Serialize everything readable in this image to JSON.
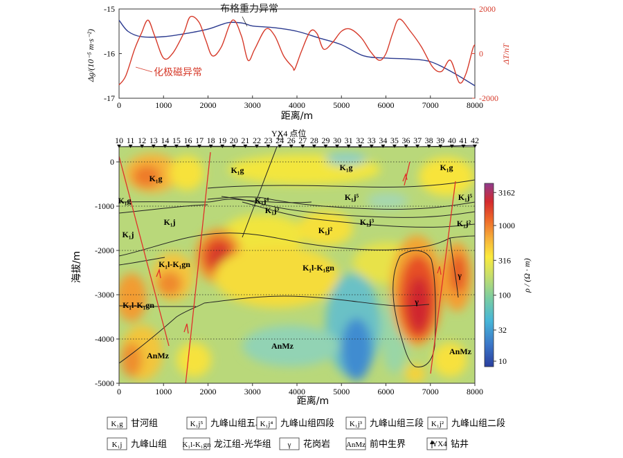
{
  "top_chart": {
    "left_axis_label": "Δg/(10⁻⁵ m·s⁻²)",
    "right_axis_label": "ΔT/nT",
    "xlabel": "距离/m",
    "left_ticks": [
      "-15",
      "-16",
      "-17"
    ],
    "right_ticks": [
      "2000",
      "0",
      "-2000"
    ],
    "x_ticks": [
      "0",
      "1000",
      "2000",
      "3000",
      "4000",
      "5000",
      "6000",
      "7000",
      "8000"
    ],
    "gravity_label": "布格重力异常",
    "magnetic_label": "化极磁异常",
    "gravity_color": "#2b3a8f",
    "magnetic_color": "#d63a2a"
  },
  "chart_data": {
    "type": "line",
    "x_unit": "m",
    "xlim": [
      0,
      8000
    ],
    "series": [
      {
        "name": "布格重力异常",
        "axis": "left",
        "ylim": [
          -17,
          -15
        ],
        "points": [
          [
            0,
            -15.25
          ],
          [
            200,
            -15.5
          ],
          [
            500,
            -15.62
          ],
          [
            1000,
            -15.62
          ],
          [
            1500,
            -15.55
          ],
          [
            2000,
            -15.45
          ],
          [
            2300,
            -15.35
          ],
          [
            2500,
            -15.3
          ],
          [
            2800,
            -15.32
          ],
          [
            3000,
            -15.38
          ],
          [
            3500,
            -15.42
          ],
          [
            4000,
            -15.5
          ],
          [
            4500,
            -15.65
          ],
          [
            5000,
            -15.8
          ],
          [
            5500,
            -16.05
          ],
          [
            6000,
            -16.1
          ],
          [
            6500,
            -16.12
          ],
          [
            7000,
            -16.18
          ],
          [
            7500,
            -16.42
          ],
          [
            8000,
            -16.72
          ]
        ]
      },
      {
        "name": "化极磁异常",
        "axis": "right",
        "ylim": [
          -2000,
          2000
        ],
        "points": [
          [
            0,
            -1400
          ],
          [
            150,
            -1000
          ],
          [
            350,
            200
          ],
          [
            500,
            900
          ],
          [
            650,
            1500
          ],
          [
            800,
            800
          ],
          [
            1000,
            -200
          ],
          [
            1200,
            0
          ],
          [
            1450,
            900
          ],
          [
            1600,
            1650
          ],
          [
            1800,
            1400
          ],
          [
            1950,
            600
          ],
          [
            2100,
            -100
          ],
          [
            2300,
            300
          ],
          [
            2550,
            1500
          ],
          [
            2750,
            800
          ],
          [
            2900,
            -300
          ],
          [
            3050,
            200
          ],
          [
            3300,
            1100
          ],
          [
            3500,
            800
          ],
          [
            3700,
            -100
          ],
          [
            3900,
            -600
          ],
          [
            3950,
            -700
          ],
          [
            4100,
            100
          ],
          [
            4300,
            1000
          ],
          [
            4450,
            900
          ],
          [
            4600,
            200
          ],
          [
            4800,
            500
          ],
          [
            5000,
            1000
          ],
          [
            5200,
            1100
          ],
          [
            5450,
            700
          ],
          [
            5650,
            100
          ],
          [
            5850,
            -300
          ],
          [
            6000,
            0
          ],
          [
            6150,
            900
          ],
          [
            6300,
            1550
          ],
          [
            6550,
            1000
          ],
          [
            6800,
            300
          ],
          [
            7050,
            -600
          ],
          [
            7250,
            -800
          ],
          [
            7450,
            -300
          ],
          [
            7650,
            -1300
          ],
          [
            7800,
            -900
          ],
          [
            7950,
            200
          ],
          [
            8000,
            400
          ]
        ]
      }
    ]
  },
  "section": {
    "ylabel": "海拔/m",
    "xlabel": "距离/m",
    "y_ticks": [
      "0",
      "-1000",
      "-2000",
      "-3000",
      "-4000",
      "-5000"
    ],
    "x_ticks": [
      "0",
      "1000",
      "2000",
      "3000",
      "4000",
      "5000",
      "6000",
      "7000",
      "8000"
    ],
    "well_label": "YX4  点位",
    "station_numbers": [
      "10",
      "11",
      "12",
      "13",
      "14",
      "15",
      "16",
      "17",
      "18",
      "19",
      "20",
      "21",
      "22",
      "23",
      "24",
      "26",
      "27",
      "28",
      "29",
      "30",
      "31",
      "32",
      "33",
      "34",
      "35",
      "36",
      "37",
      "38",
      "39",
      "40",
      "41",
      "42"
    ],
    "colorbar_label": "ρ / (Ω · m)",
    "colorbar_ticks": [
      "3162",
      "1000",
      "316",
      "100",
      "32",
      "10"
    ],
    "units": [
      {
        "text": "K₁g",
        "x": 225,
        "y": 262
      },
      {
        "text": "K₁g",
        "x": 343,
        "y": 250
      },
      {
        "text": "K₁g",
        "x": 500,
        "y": 246
      },
      {
        "text": "K₁g",
        "x": 645,
        "y": 246
      },
      {
        "text": "K₁g",
        "x": 180,
        "y": 294
      },
      {
        "text": "K₁j⁵",
        "x": 508,
        "y": 289
      },
      {
        "text": "K₁j⁵",
        "x": 672,
        "y": 289
      },
      {
        "text": "K₁j⁴",
        "x": 378,
        "y": 294
      },
      {
        "text": "K₁j³",
        "x": 393,
        "y": 308
      },
      {
        "text": "K₁j³",
        "x": 530,
        "y": 325
      },
      {
        "text": "K₁j²",
        "x": 470,
        "y": 337
      },
      {
        "text": "K₁j²",
        "x": 670,
        "y": 327
      },
      {
        "text": "K₁j",
        "x": 245,
        "y": 325
      },
      {
        "text": "K₁j",
        "x": 185,
        "y": 343
      },
      {
        "text": "K₁l-K₁gn",
        "x": 252,
        "y": 386
      },
      {
        "text": "K₁l-K₁gn",
        "x": 460,
        "y": 391
      },
      {
        "text": "K₁l-K₁gn",
        "x": 200,
        "y": 445
      },
      {
        "text": "γ",
        "x": 602,
        "y": 440
      },
      {
        "text": "γ",
        "x": 664,
        "y": 402
      },
      {
        "text": "AnMz",
        "x": 228,
        "y": 518
      },
      {
        "text": "AnMz",
        "x": 408,
        "y": 504
      },
      {
        "text": "AnMz",
        "x": 665,
        "y": 512
      }
    ]
  },
  "legend": [
    {
      "symbol": "K₁g",
      "text": "甘河组"
    },
    {
      "symbol": "K₁j⁵",
      "text": "九峰山组五段"
    },
    {
      "symbol": "K₁j⁴",
      "text": "九峰山组四段"
    },
    {
      "symbol": "K₁j³",
      "text": "九峰山组三段"
    },
    {
      "symbol": "K₁j²",
      "text": "九峰山组二段"
    },
    {
      "symbol": "K₁j",
      "text": "九峰山组"
    },
    {
      "symbol": "K₁l-K₁gn",
      "text": "龙江组-光华组"
    },
    {
      "symbol": "γ",
      "text": "花岗岩"
    },
    {
      "symbol": "AnMz",
      "text": "前中生界"
    },
    {
      "symbol": "YX4",
      "text": "钻井"
    }
  ]
}
